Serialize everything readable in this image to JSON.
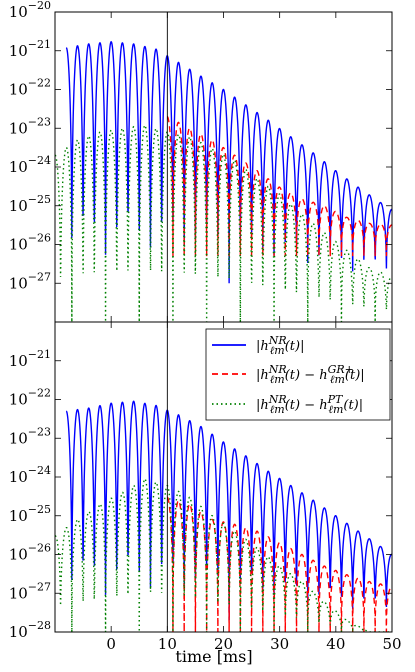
{
  "chart_data": [
    {
      "type": "line",
      "panel": "top",
      "yscale": "log",
      "ylim": [
        1e-28,
        1e-20
      ],
      "xlim": [
        -10,
        50
      ],
      "y_tick_labels": [
        "10^-27",
        "10^-26",
        "10^-25",
        "10^-24",
        "10^-23",
        "10^-22",
        "10^-21",
        "10^-20"
      ],
      "vline_x": 10,
      "series": [
        {
          "key": "nr",
          "color": "#0000ff",
          "dash": "solid",
          "peaks": [
            [
              -8,
              1.2e-21
            ],
            [
              -4,
              1.5e-21
            ],
            [
              0,
              1.7e-21
            ],
            [
              4,
              1.5e-21
            ],
            [
              8,
              1.1e-21
            ],
            [
              12,
              5e-22
            ],
            [
              16,
              2.2e-22
            ],
            [
              20,
              1e-22
            ],
            [
              24,
              4e-23
            ],
            [
              28,
              1.6e-23
            ],
            [
              32,
              6e-24
            ],
            [
              36,
              2.3e-24
            ],
            [
              40,
              8e-25
            ],
            [
              44,
              3e-25
            ],
            [
              48,
              1.2e-25
            ],
            [
              50,
              8e-26
            ]
          ],
          "dips": 1e-27
        },
        {
          "key": "gr",
          "color": "#ff0000",
          "dash": "dashed",
          "peaks": [
            [
              10,
              2e-23
            ],
            [
              14,
              1e-23
            ],
            [
              18,
              5e-24
            ],
            [
              22,
              2e-24
            ],
            [
              26,
              8e-25
            ],
            [
              30,
              3e-25
            ],
            [
              34,
              1.5e-25
            ],
            [
              38,
              1e-25
            ],
            [
              42,
              5e-26
            ],
            [
              46,
              3.5e-26
            ],
            [
              50,
              3.2e-26
            ]
          ],
          "dips": 5e-27
        },
        {
          "key": "pt",
          "color": "#008000",
          "dash": "dotted",
          "peaks": [
            [
              -10,
              2e-24
            ],
            [
              -6,
              5e-24
            ],
            [
              -2,
              8e-24
            ],
            [
              2,
              1e-23
            ],
            [
              6,
              1.2e-23
            ],
            [
              10,
              8e-24
            ],
            [
              14,
              6e-24
            ],
            [
              18,
              3e-24
            ],
            [
              22,
              1.5e-24
            ],
            [
              26,
              5e-25
            ],
            [
              30,
              2e-25
            ],
            [
              34,
              6e-26
            ],
            [
              38,
              2e-26
            ],
            [
              42,
              7e-27
            ],
            [
              46,
              2.5e-27
            ],
            [
              50,
              1.5e-27
            ]
          ],
          "dips": 1e-28
        }
      ]
    },
    {
      "type": "line",
      "panel": "bottom",
      "yscale": "log",
      "ylim": [
        1e-28,
        1e-20
      ],
      "xlim": [
        -10,
        50
      ],
      "y_tick_labels": [
        "10^-28",
        "10^-27",
        "10^-26",
        "10^-25",
        "10^-24",
        "10^-23",
        "10^-22",
        "10^-21"
      ],
      "x_tick_labels": [
        "0",
        "10",
        "20",
        "30",
        "40",
        "50"
      ],
      "xlabel": "time [ms]",
      "vline_x": 10,
      "series": [
        {
          "key": "nr",
          "color": "#0000ff",
          "dash": "solid",
          "peaks": [
            [
              -8,
              5e-23
            ],
            [
              -4,
              6e-23
            ],
            [
              0,
              8e-23
            ],
            [
              4,
              9e-23
            ],
            [
              8,
              7e-23
            ],
            [
              12,
              4e-23
            ],
            [
              16,
              2e-23
            ],
            [
              20,
              8e-24
            ],
            [
              24,
              3.5e-24
            ],
            [
              28,
              1.4e-24
            ],
            [
              32,
              6e-25
            ],
            [
              36,
              2.5e-25
            ],
            [
              40,
              1e-25
            ],
            [
              44,
              4e-26
            ],
            [
              48,
              1.6e-26
            ],
            [
              50,
              1e-26
            ]
          ],
          "dips": 2e-28
        },
        {
          "key": "gr",
          "color": "#ff0000",
          "dash": "dashed",
          "peaks": [
            [
              10,
              3e-25
            ],
            [
              14,
              2e-25
            ],
            [
              18,
              8e-26
            ],
            [
              22,
              6e-26
            ],
            [
              26,
              4e-26
            ],
            [
              30,
              2e-26
            ],
            [
              34,
              1e-26
            ],
            [
              38,
              5e-27
            ],
            [
              42,
              3e-27
            ],
            [
              46,
              2e-27
            ],
            [
              50,
              1.5e-27
            ]
          ],
          "dips": 1e-28
        },
        {
          "key": "pt",
          "color": "#008000",
          "dash": "dotted",
          "peaks": [
            [
              -10,
              3e-26
            ],
            [
              -6,
              8e-26
            ],
            [
              -2,
              2e-25
            ],
            [
              2,
              4e-25
            ],
            [
              6,
              9e-25
            ],
            [
              10,
              6e-25
            ],
            [
              14,
              3e-25
            ],
            [
              18,
              1e-25
            ],
            [
              22,
              4e-26
            ],
            [
              26,
              1.5e-26
            ],
            [
              30,
              5e-27
            ],
            [
              34,
              2e-27
            ],
            [
              38,
              6e-28
            ],
            [
              42,
              2e-28
            ],
            [
              46,
              1e-28
            ],
            [
              50,
              1e-28
            ]
          ],
          "dips": 1e-28
        }
      ]
    }
  ],
  "legend": {
    "placement": "top-right of bottom panel",
    "entries": [
      {
        "key": "nr",
        "label": "|h_ℓm^NR(t)|"
      },
      {
        "key": "gr",
        "label": "|h_ℓm^NR(t) − h_ℓm^GR+(t)|"
      },
      {
        "key": "pt",
        "label": "|h_ℓm^NR(t) − h_ℓm^PT(t)|"
      }
    ]
  }
}
